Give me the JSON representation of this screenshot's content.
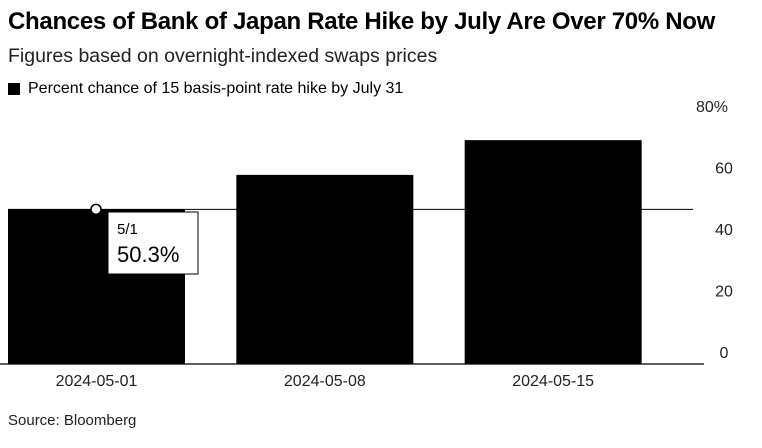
{
  "title": "Chances of Bank of Japan Rate Hike by July Are Over 70% Now",
  "subtitle": "Figures based on overnight-indexed swaps prices",
  "source": "Source: Bloomberg",
  "colors": {
    "bar": "#000000",
    "baseline": "#000000",
    "reference_line": "#000000",
    "callout_border": "#000000"
  },
  "chart_data": {
    "type": "bar",
    "categories": [
      "2024-05-01",
      "2024-05-08",
      "2024-05-15"
    ],
    "series": [
      {
        "name": "Percent chance of 15 basis-point rate hike by July 31",
        "values": [
          50.3,
          61.5,
          72.8
        ]
      }
    ],
    "y_ticks": [
      "80%",
      "60",
      "40",
      "20",
      "0"
    ],
    "ylim": [
      0,
      80
    ],
    "y_axis_position": "right",
    "grid": false,
    "legend_position": "top-left",
    "reference_line_value": 50.3,
    "annotation": {
      "category": "2024-05-01",
      "date_label": "5/1",
      "value_label": "50.3%"
    }
  }
}
